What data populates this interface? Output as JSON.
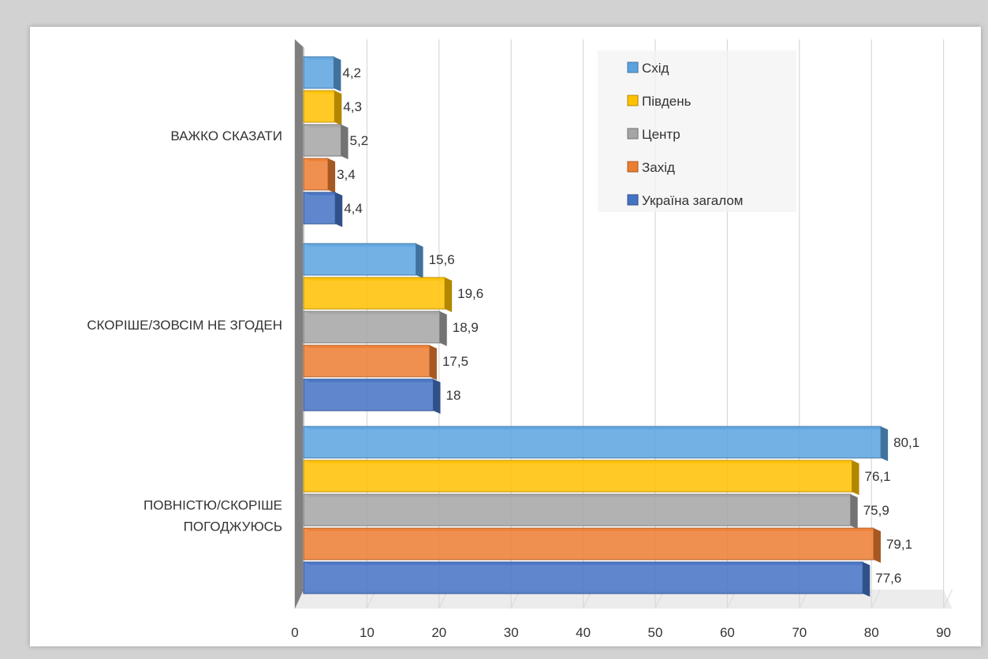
{
  "chart_data": {
    "type": "bar",
    "orientation": "horizontal",
    "categories": [
      "ВАЖКО СКАЗАТИ",
      "СКОРІШЕ/ЗОВСІМ НЕ ЗГОДЕН",
      "ПОВНІСТЮ/СКОРІШЕ ПОГОДЖУЮСЬ"
    ],
    "category_lines": [
      [
        "ВАЖКО СКАЗАТИ"
      ],
      [
        "СКОРІШЕ/ЗОВСІМ НЕ ЗГОДЕН"
      ],
      [
        "ПОВНІСТЮ/СКОРІШЕ",
        "ПОГОДЖУЮСЬ"
      ]
    ],
    "series": [
      {
        "name": "Схід",
        "color": "#5ba3e0",
        "values": [
          4.2,
          15.6,
          80.1
        ],
        "labels": [
          "4,2",
          "15,6",
          "80,1"
        ]
      },
      {
        "name": "Південь",
        "color": "#ffc000",
        "values": [
          4.3,
          19.6,
          76.1
        ],
        "labels": [
          "4,3",
          "19,6",
          "76,1"
        ]
      },
      {
        "name": "Центр",
        "color": "#a5a5a5",
        "values": [
          5.2,
          18.9,
          75.9
        ],
        "labels": [
          "5,2",
          "18,9",
          "75,9"
        ]
      },
      {
        "name": "Захід",
        "color": "#ed7d31",
        "values": [
          3.4,
          17.5,
          79.1
        ],
        "labels": [
          "3,4",
          "17,5",
          "79,1"
        ]
      },
      {
        "name": "Україна загалом",
        "color": "#4472c4",
        "values": [
          4.4,
          18,
          77.6
        ],
        "labels": [
          "4,4",
          "18",
          "77,6"
        ]
      }
    ],
    "xlim": [
      0,
      90
    ],
    "xticks": [
      "0",
      "10",
      "20",
      "30",
      "40",
      "50",
      "60",
      "70",
      "80",
      "90"
    ],
    "grid": true,
    "legend_position": "top-right",
    "style": "3d"
  }
}
